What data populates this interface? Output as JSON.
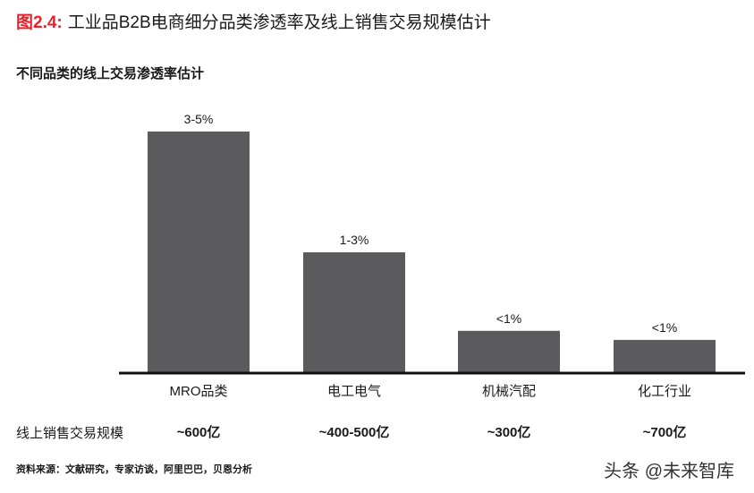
{
  "header": {
    "fig_label": "图2.4:",
    "title": "工业品B2B电商细分品类渗透率及线上销售交易规模估计",
    "accent_color": "#e8212a"
  },
  "chart_data": {
    "type": "bar",
    "title": "不同品类的线上交易渗透率估计",
    "categories": [
      "MRO品类",
      "电工电气",
      "机械汽配",
      "化工行业"
    ],
    "values": [
      4,
      2,
      0.7,
      0.55
    ],
    "data_labels": [
      "3-5%",
      "1-3%",
      "<1%",
      "<1%"
    ],
    "bar_color": "#5b5a5c",
    "ylim": [
      0,
      4
    ],
    "grid": false,
    "extra_row": {
      "label": "线上销售交易规模",
      "values": [
        "~600亿",
        "~400-500亿",
        "~300亿",
        "~700亿"
      ]
    }
  },
  "footer": {
    "source": "资料来源：文献研究，专家访谈，阿里巴巴，贝恩分析",
    "watermark": "头条 @未来智库"
  }
}
